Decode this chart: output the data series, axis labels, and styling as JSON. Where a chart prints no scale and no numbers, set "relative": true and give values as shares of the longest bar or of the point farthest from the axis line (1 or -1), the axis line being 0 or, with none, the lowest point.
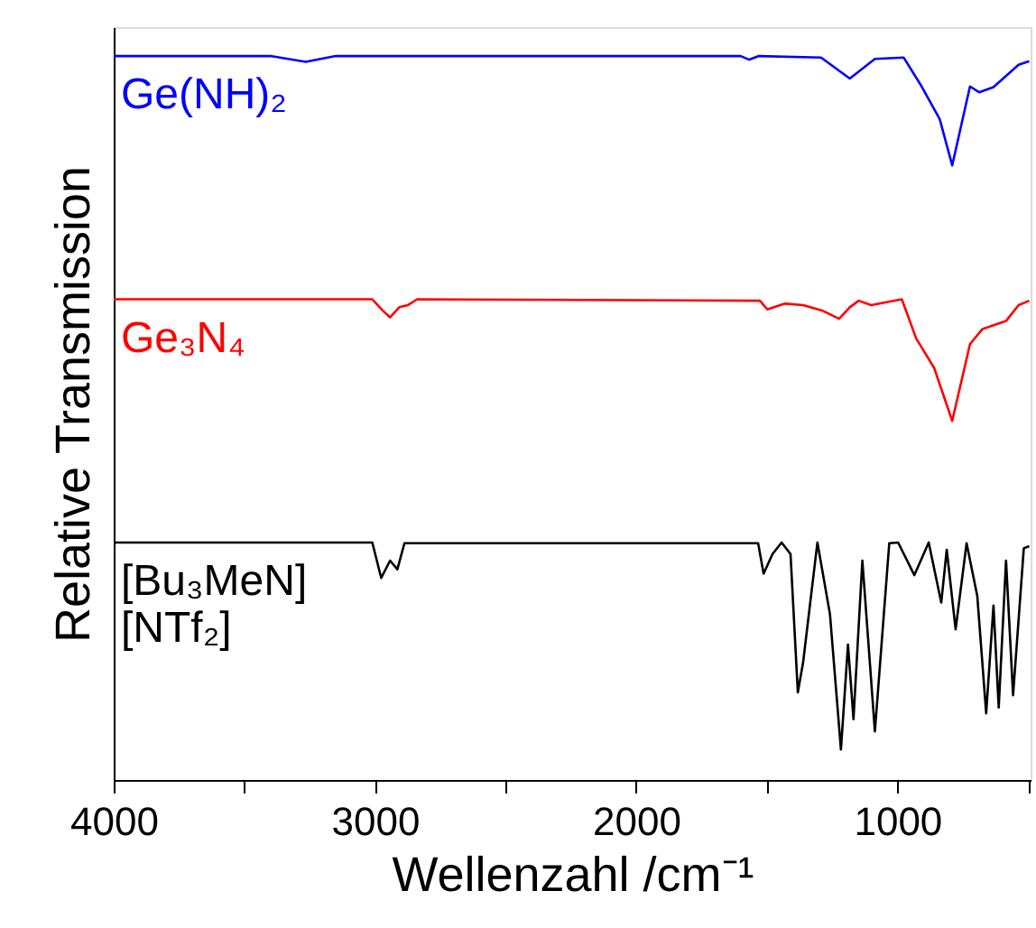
{
  "chart_data": {
    "type": "line",
    "relative": true,
    "xlabel": "Wellenzahl /cm⁻¹",
    "ylabel": "Relative Transmission",
    "xlim": [
      4000,
      490
    ],
    "xticks": [
      4000,
      {
        "value": 3500,
        "label": null
      },
      3000,
      {
        "value": 2500,
        "label": null
      },
      2000,
      {
        "value": 1500,
        "label": null
      },
      1000,
      {
        "value": 500,
        "label": null
      }
    ],
    "tick_labels": "x",
    "grid": false,
    "line_style": "solid",
    "marker": "none",
    "series": [
      {
        "name": "Ge(NH)₂",
        "color": "#0000ff",
        "x": [
          4000,
          3400,
          3265,
          3150,
          1600,
          1567,
          1530,
          1292,
          1182,
          1086,
          976,
          907,
          838,
          790,
          722,
          687,
          632,
          536,
          495
        ],
        "values": [
          1.0,
          1.0,
          0.992,
          1.0,
          1.0,
          0.995,
          1.0,
          0.998,
          0.969,
          0.996,
          0.998,
          0.958,
          0.913,
          0.849,
          0.958,
          0.95,
          0.957,
          0.988,
          0.993
        ]
      },
      {
        "name": "Ge₃N₄",
        "color": "#ff0000",
        "x": [
          4000,
          3010,
          2969,
          2942,
          2907,
          2873,
          2838,
          1526,
          1498,
          1430,
          1361,
          1285,
          1223,
          1182,
          1148,
          1100,
          983,
          928,
          859,
          790,
          722,
          674,
          584,
          536,
          495
        ],
        "values": [
          0.664,
          0.664,
          0.648,
          0.639,
          0.653,
          0.656,
          0.664,
          0.662,
          0.65,
          0.658,
          0.656,
          0.648,
          0.637,
          0.653,
          0.662,
          0.656,
          0.664,
          0.61,
          0.569,
          0.496,
          0.602,
          0.623,
          0.634,
          0.656,
          0.662
        ]
      },
      {
        "name": "[Bu₃MeN]\n[NTf₂]",
        "color": "#000000",
        "x": [
          4000,
          3010,
          2976,
          2942,
          2914,
          2887,
          1533,
          1512,
          1478,
          1443,
          1409,
          1381,
          1361,
          1306,
          1258,
          1216,
          1189,
          1168,
          1134,
          1086,
          1031,
          997,
          935,
          880,
          832,
          811,
          777,
          735,
          694,
          660,
          632,
          612,
          584,
          557,
          516,
          495
        ],
        "values": [
          0.328,
          0.328,
          0.279,
          0.303,
          0.291,
          0.327,
          0.327,
          0.285,
          0.312,
          0.328,
          0.312,
          0.121,
          0.162,
          0.328,
          0.229,
          0.042,
          0.187,
          0.084,
          0.303,
          0.067,
          0.327,
          0.328,
          0.283,
          0.328,
          0.245,
          0.318,
          0.208,
          0.327,
          0.254,
          0.092,
          0.241,
          0.1,
          0.303,
          0.117,
          0.32,
          0.323
        ]
      }
    ]
  }
}
